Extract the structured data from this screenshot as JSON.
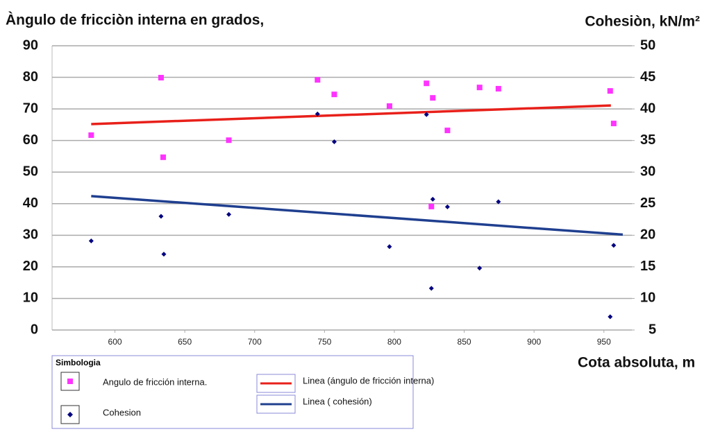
{
  "chart_data": {
    "type": "scatter",
    "title": "Àngulo de fricciòn interna en grados,",
    "y2_label": "Cohesiòn, kN/m²",
    "x_label": "Cota absoluta, m",
    "legend_title": "Simbologia",
    "xlim": [
      555,
      970
    ],
    "xticks": [
      600,
      650,
      700,
      750,
      800,
      850,
      900,
      950
    ],
    "ylim": [
      0,
      90
    ],
    "yticks": [
      0,
      10,
      20,
      30,
      40,
      50,
      60,
      70,
      80,
      90
    ],
    "y2lim": [
      5,
      50
    ],
    "y2ticks": [
      5,
      10,
      15,
      20,
      25,
      30,
      35,
      40,
      45,
      50
    ],
    "grid": true,
    "series": [
      {
        "name": "Angulo de fricción interna.",
        "type": "scatter",
        "marker": "square",
        "color": "#ff33ff",
        "axis": "y",
        "x": [
          583,
          633,
          634.5,
          681.5,
          745,
          757,
          796.5,
          823,
          827.5,
          826.5,
          838,
          861,
          874.5,
          954.5,
          957
        ],
        "values": [
          61.7,
          79.9,
          54.7,
          60.1,
          79.2,
          74.6,
          70.9,
          78.1,
          73.5,
          39.1,
          63.2,
          76.8,
          76.4,
          75.7,
          65.4
        ]
      },
      {
        "name": "Cohesion",
        "type": "scatter",
        "marker": "diamond",
        "color": "#000080",
        "axis": "y2",
        "x": [
          583,
          633,
          635,
          681.5,
          745,
          757,
          796.5,
          823,
          827.5,
          826.5,
          838,
          861,
          874.5,
          954.5,
          957
        ],
        "values": [
          19.1,
          23.0,
          17.0,
          23.3,
          39.2,
          34.8,
          18.2,
          39.1,
          25.7,
          11.6,
          24.5,
          14.8,
          25.3,
          7.1,
          18.4
        ]
      },
      {
        "name": "Linea (ángulo de fricción interna)",
        "type": "line",
        "color": "#e8201a",
        "axis": "y",
        "x": [
          583,
          955
        ],
        "values": [
          65.2,
          71.1
        ]
      },
      {
        "name": "Linea ( cohesión)",
        "type": "line",
        "color": "#1f3f8f",
        "axis": "y2",
        "x": [
          583,
          963.5
        ],
        "values": [
          26.2,
          20.1
        ]
      }
    ]
  }
}
